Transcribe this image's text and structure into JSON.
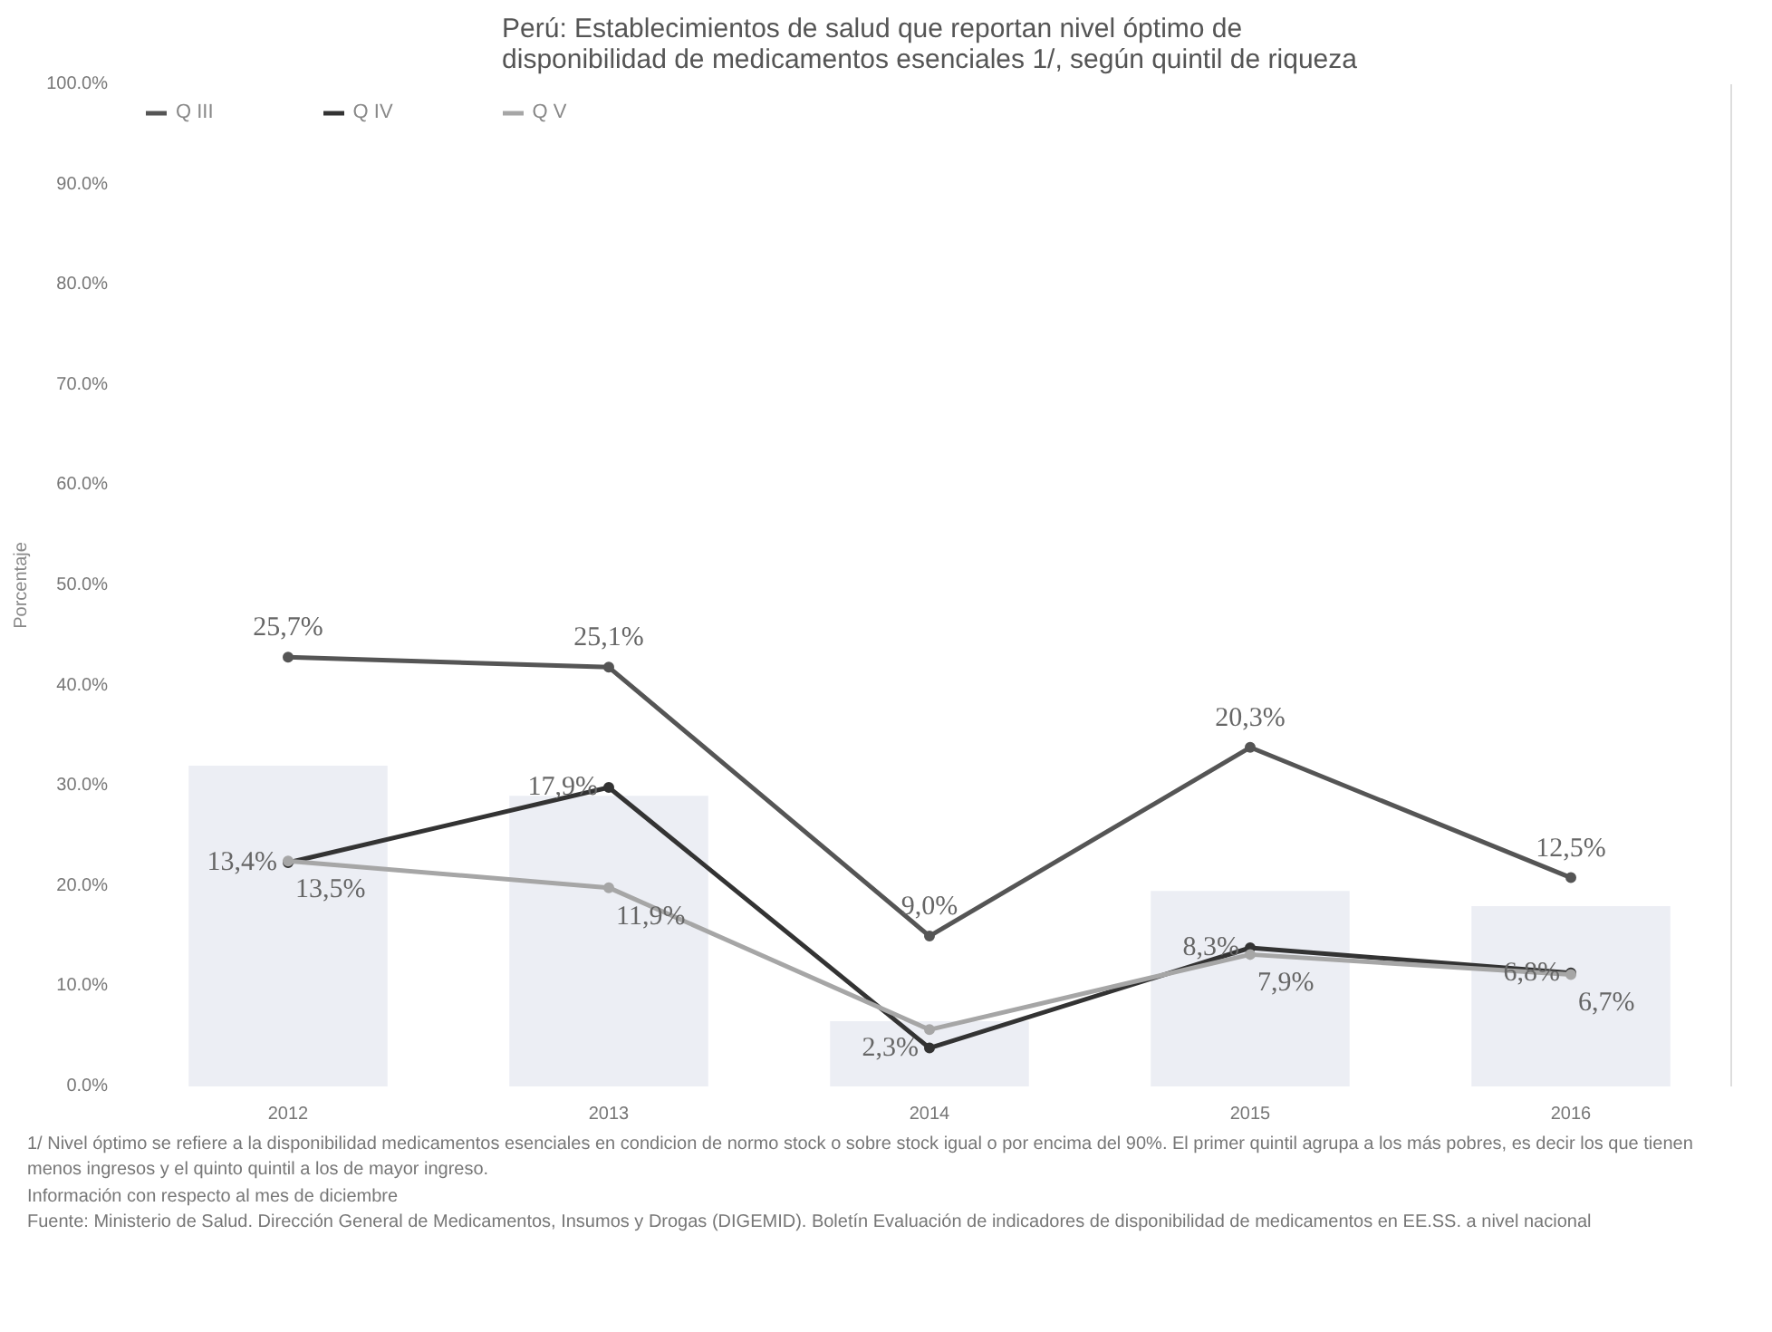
{
  "chart_data": {
    "type": "line",
    "title": "Perú: Establecimientos de salud que reportan nivel óptimo de disponibilidad de medicamentos esenciales 1/, según quintil de riqueza",
    "ylabel": "Porcentaje",
    "categories": [
      "2012",
      "2013",
      "2014",
      "2015",
      "2016"
    ],
    "ylim": [
      0,
      100
    ],
    "yticks": [
      {
        "value": 0,
        "label": "0.0%"
      },
      {
        "value": 10,
        "label": "10.0%"
      },
      {
        "value": 20,
        "label": "20.0%"
      },
      {
        "value": 30,
        "label": "30.0%"
      },
      {
        "value": 40,
        "label": "40.0%"
      },
      {
        "value": 50,
        "label": "50.0%"
      },
      {
        "value": 60,
        "label": "60.0%"
      },
      {
        "value": 70,
        "label": "70.0%"
      },
      {
        "value": 80,
        "label": "80.0%"
      },
      {
        "value": 90,
        "label": "90.0%"
      },
      {
        "value": 100,
        "label": "100.0%"
      }
    ],
    "y2lim": [
      0,
      60
    ],
    "series": [
      {
        "type": "bar",
        "color": "#eceef4",
        "values": [
          32,
          29,
          6.5,
          19.5,
          18
        ]
      },
      {
        "name": "Q III",
        "color": "#555555",
        "axis": "y2",
        "values": [
          25.7,
          25.1,
          9.0,
          20.3,
          12.5
        ],
        "value_labels": [
          "25,7%",
          "25,1%",
          "9,0%",
          "20,3%",
          "12,5%"
        ]
      },
      {
        "name": "Q IV",
        "color": "#333333",
        "axis": "y2",
        "values": [
          13.4,
          17.9,
          2.3,
          8.3,
          6.8
        ],
        "value_labels": [
          "13,4%",
          "17,9%",
          "2,3%",
          "8,3%",
          "6,8%"
        ]
      },
      {
        "name": "Q V",
        "color": "#a6a6a6",
        "axis": "y2",
        "values": [
          13.5,
          11.9,
          3.4,
          7.9,
          6.7
        ],
        "value_labels": [
          "13,5%",
          "11,9%",
          null,
          "7,9%",
          "6,7%"
        ]
      }
    ],
    "marker": "circle",
    "grid": false,
    "legend": "top left",
    "annotations": [
      "1/ Nivel óptimo se refiere a la disponibilidad medicamentos esenciales en condicion de normo stock o sobre stock igual o por encima del 90%. El primer quintil agrupa a los más pobres, es decir los que tienen menos ingresos y el quinto quintil a los de mayor ingreso.",
      "Información con respecto al mes de diciembre",
      "Fuente: Ministerio de Salud. Dirección General de Medicamentos, Insumos y Drogas (DIGEMID). Boletín Evaluación de indicadores de disponibilidad de medicamentos en EE.SS. a nivel nacional"
    ]
  }
}
